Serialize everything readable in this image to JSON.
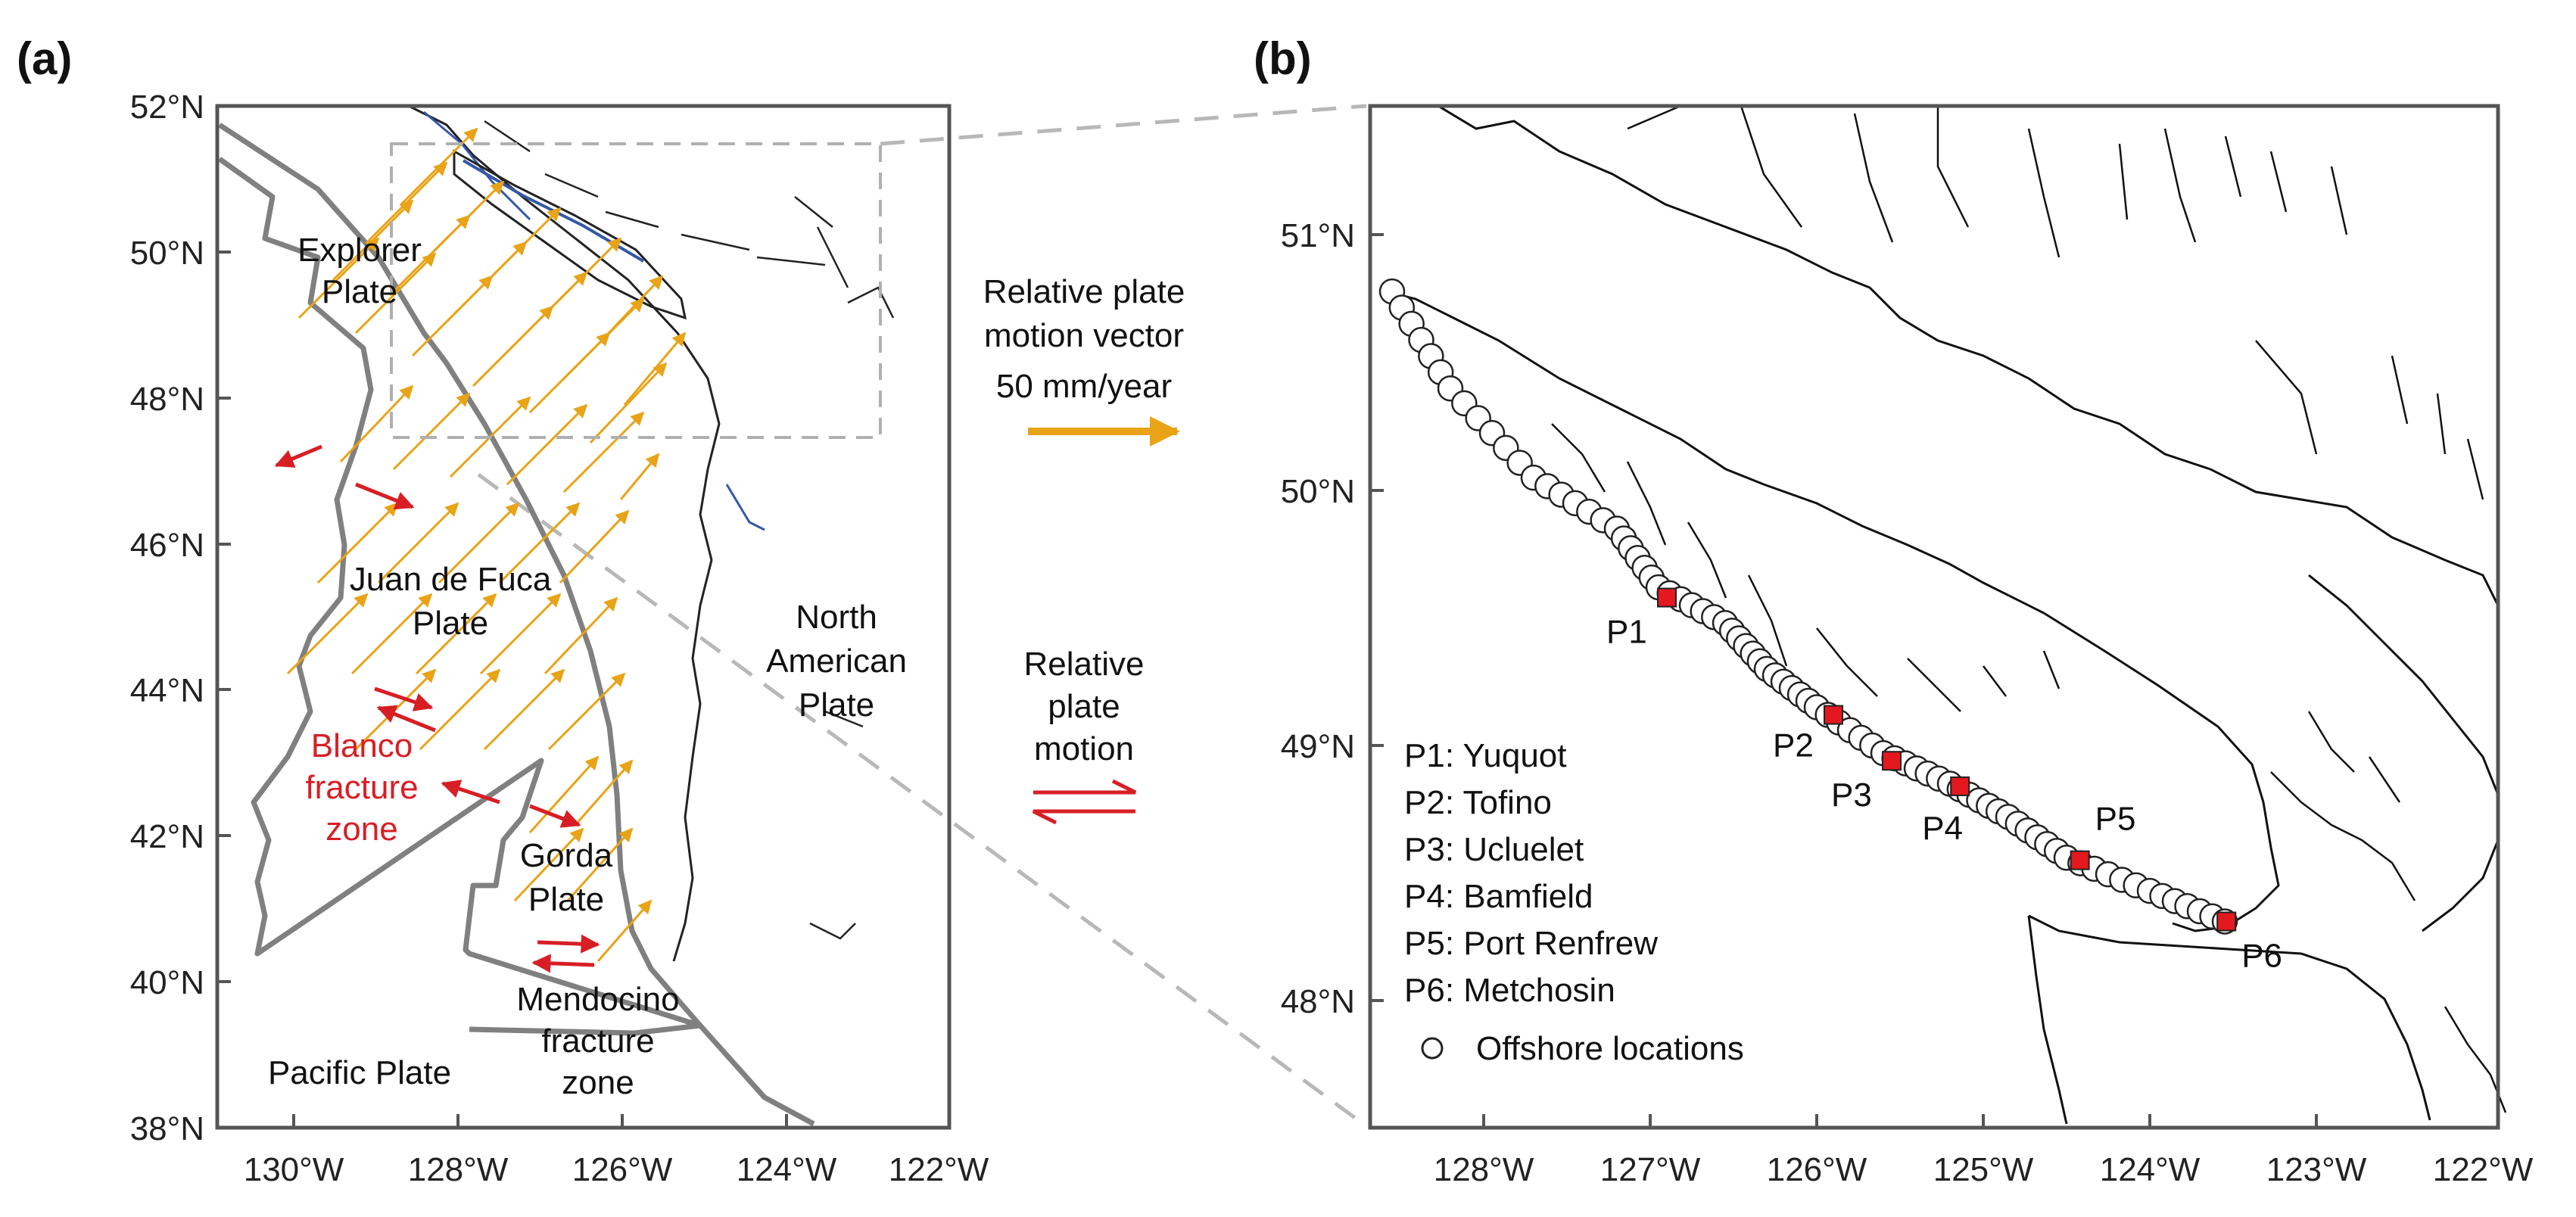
{
  "panels": {
    "a": "(a)",
    "b": "(b)"
  },
  "map_a": {
    "lat_ticks": [
      "52°N",
      "50°N",
      "48°N",
      "46°N",
      "44°N",
      "42°N",
      "40°N",
      "38°N"
    ],
    "lon_ticks": [
      "130°W",
      "128°W",
      "126°W",
      "124°W",
      "122°W"
    ],
    "plates": {
      "explorer": [
        "Explorer",
        "Plate"
      ],
      "juan_de_fuca": [
        "Juan de Fuca",
        "Plate"
      ],
      "north_american": [
        "North",
        "American",
        "Plate"
      ],
      "gorda": [
        "Gorda",
        "Plate"
      ],
      "pacific": "Pacific Plate"
    },
    "fracture_zones": {
      "blanco": [
        "Blanco",
        "fracture",
        "zone"
      ],
      "mendocino": [
        "Mendocino",
        "fracture",
        "zone"
      ]
    }
  },
  "legend_middle": {
    "vector_title": [
      "Relative plate",
      "motion vector"
    ],
    "vector_scale": "50 mm/year",
    "motion_title": [
      "Relative",
      "plate",
      "motion"
    ]
  },
  "map_b": {
    "lat_ticks": [
      "51°N",
      "50°N",
      "49°N",
      "48°N"
    ],
    "lon_ticks": [
      "128°W",
      "127°W",
      "126°W",
      "125°W",
      "124°W",
      "123°W",
      "122°W"
    ],
    "stations": [
      {
        "id": "P1",
        "name": "Yuquot",
        "lon": -126.9,
        "lat": 49.58
      },
      {
        "id": "P2",
        "name": "Tofino",
        "lon": -125.9,
        "lat": 49.12
      },
      {
        "id": "P3",
        "name": "Ucluelet",
        "lon": -125.55,
        "lat": 48.94
      },
      {
        "id": "P4",
        "name": "Bamfield",
        "lon": -125.14,
        "lat": 48.84
      },
      {
        "id": "P5",
        "name": "Port Renfrew",
        "lon": -124.42,
        "lat": 48.55
      },
      {
        "id": "P6",
        "name": "Metchosin",
        "lon": -123.54,
        "lat": 48.31
      }
    ],
    "legend": {
      "p1": "P1: Yuquot",
      "p2": "P2: Tofino",
      "p3": "P3: Ucluelet",
      "p4": "P4: Bamfield",
      "p5": "P5: Port Renfrew",
      "p6": "P6: Metchosin",
      "offshore": "Offshore locations"
    }
  },
  "colors": {
    "frame": "#555555",
    "plate_boundary": "#808080",
    "vector": "#e8a317",
    "fracture": "#d81e25",
    "station": "#e3191f",
    "coast": "#111111",
    "coast_blue": "#3558a6",
    "dashed": "#b0b0b0"
  }
}
